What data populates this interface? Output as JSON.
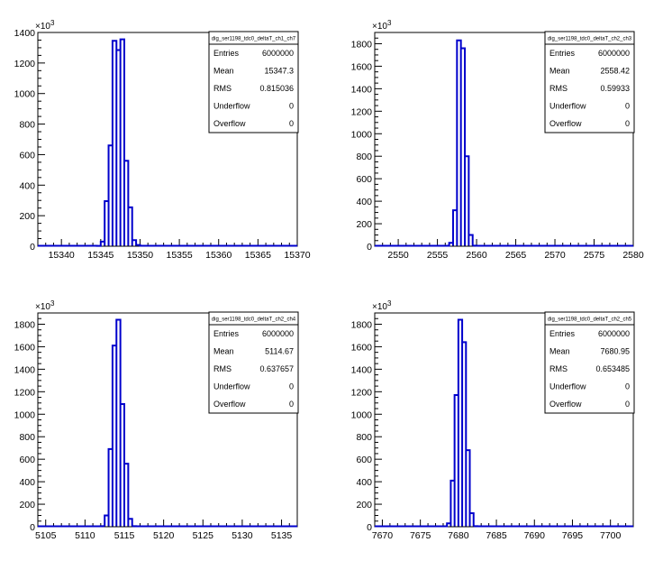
{
  "chart_data": [
    {
      "type": "bar",
      "title": "dig_ser1198_tdc0_deltaT_ch1_ch7",
      "y_exponent": "10",
      "y_exponent_power": "3",
      "xlim": [
        15337,
        15370
      ],
      "ylim": [
        0,
        1400
      ],
      "x_ticks": [
        15340,
        15345,
        15350,
        15355,
        15360,
        15365,
        15370
      ],
      "x_tick_labels": [
        "15340",
        "15345",
        "15350",
        "15355",
        "15360",
        "15365",
        "15370"
      ],
      "y_ticks": [
        0,
        200,
        400,
        600,
        800,
        1000,
        1200,
        1400
      ],
      "y_tick_labels": [
        "0",
        "200",
        "400",
        "600",
        "800",
        "1000",
        "1200",
        "1400"
      ],
      "bin_width": 0.5,
      "bins": [
        {
          "x": 15344.5,
          "y": 2
        },
        {
          "x": 15345.0,
          "y": 30
        },
        {
          "x": 15345.5,
          "y": 295
        },
        {
          "x": 15346.0,
          "y": 660
        },
        {
          "x": 15346.5,
          "y": 1345
        },
        {
          "x": 15347.0,
          "y": 1285
        },
        {
          "x": 15347.5,
          "y": 1355
        },
        {
          "x": 15348.0,
          "y": 560
        },
        {
          "x": 15348.5,
          "y": 255
        },
        {
          "x": 15349.0,
          "y": 40
        },
        {
          "x": 15349.5,
          "y": 8
        }
      ],
      "stats": {
        "rows": [
          {
            "label": "Entries",
            "value": "6000000"
          },
          {
            "label": "Mean",
            "value": "15347.3"
          },
          {
            "label": "RMS",
            "value": "0.815036"
          },
          {
            "label": "Underflow",
            "value": "0"
          },
          {
            "label": "Overflow",
            "value": "0"
          }
        ]
      },
      "line_color": "#0000cc"
    },
    {
      "type": "bar",
      "title": "dig_ser1198_tdc0_deltaT_ch2_ch3",
      "y_exponent": "10",
      "y_exponent_power": "3",
      "xlim": [
        2547,
        2580
      ],
      "ylim": [
        0,
        1900
      ],
      "x_ticks": [
        2550,
        2555,
        2560,
        2565,
        2570,
        2575,
        2580
      ],
      "x_tick_labels": [
        "2550",
        "2555",
        "2560",
        "2565",
        "2570",
        "2575",
        "2580"
      ],
      "y_ticks": [
        0,
        200,
        400,
        600,
        800,
        1000,
        1200,
        1400,
        1600,
        1800
      ],
      "y_tick_labels": [
        "0",
        "200",
        "400",
        "600",
        "800",
        "1000",
        "1200",
        "1400",
        "1600",
        "1800"
      ],
      "bin_width": 0.5,
      "bins": [
        {
          "x": 2556.5,
          "y": 30
        },
        {
          "x": 2557.0,
          "y": 320
        },
        {
          "x": 2557.5,
          "y": 1830
        },
        {
          "x": 2558.0,
          "y": 1760
        },
        {
          "x": 2558.5,
          "y": 800
        },
        {
          "x": 2559.0,
          "y": 100
        },
        {
          "x": 2559.5,
          "y": 5
        }
      ],
      "stats": {
        "rows": [
          {
            "label": "Entries",
            "value": "6000000"
          },
          {
            "label": "Mean",
            "value": "2558.42"
          },
          {
            "label": "RMS",
            "value": "0.59933"
          },
          {
            "label": "Underflow",
            "value": "0"
          },
          {
            "label": "Overflow",
            "value": "0"
          }
        ]
      },
      "line_color": "#0000cc"
    },
    {
      "type": "bar",
      "title": "dig_ser1198_tdc0_deltaT_ch2_ch4",
      "y_exponent": "10",
      "y_exponent_power": "3",
      "xlim": [
        5104,
        5137
      ],
      "ylim": [
        0,
        1900
      ],
      "x_ticks": [
        5105,
        5110,
        5115,
        5120,
        5125,
        5130,
        5135
      ],
      "x_tick_labels": [
        "5105",
        "5110",
        "5115",
        "5120",
        "5125",
        "5130",
        "5135"
      ],
      "y_ticks": [
        0,
        200,
        400,
        600,
        800,
        1000,
        1200,
        1400,
        1600,
        1800
      ],
      "y_tick_labels": [
        "0",
        "200",
        "400",
        "600",
        "800",
        "1000",
        "1200",
        "1400",
        "1600",
        "1800"
      ],
      "bin_width": 0.5,
      "bins": [
        {
          "x": 5112.0,
          "y": 5
        },
        {
          "x": 5112.5,
          "y": 100
        },
        {
          "x": 5113.0,
          "y": 690
        },
        {
          "x": 5113.5,
          "y": 1610
        },
        {
          "x": 5114.0,
          "y": 1840
        },
        {
          "x": 5114.5,
          "y": 1090
        },
        {
          "x": 5115.0,
          "y": 560
        },
        {
          "x": 5115.5,
          "y": 70
        },
        {
          "x": 5116.0,
          "y": 5
        }
      ],
      "stats": {
        "rows": [
          {
            "label": "Entries",
            "value": "6000000"
          },
          {
            "label": "Mean",
            "value": "5114.67"
          },
          {
            "label": "RMS",
            "value": "0.637657"
          },
          {
            "label": "Underflow",
            "value": "0"
          },
          {
            "label": "Overflow",
            "value": "0"
          }
        ]
      },
      "line_color": "#0000cc"
    },
    {
      "type": "bar",
      "title": "dig_ser1198_tdc0_deltaT_ch2_ch5",
      "y_exponent": "10",
      "y_exponent_power": "3",
      "xlim": [
        7669,
        7703
      ],
      "ylim": [
        0,
        1900
      ],
      "x_ticks": [
        7670,
        7675,
        7680,
        7685,
        7690,
        7695,
        7700
      ],
      "x_tick_labels": [
        "7670",
        "7675",
        "7680",
        "7685",
        "7690",
        "7695",
        "7700"
      ],
      "y_ticks": [
        0,
        200,
        400,
        600,
        800,
        1000,
        1200,
        1400,
        1600,
        1800
      ],
      "y_tick_labels": [
        "0",
        "200",
        "400",
        "600",
        "800",
        "1000",
        "1200",
        "1400",
        "1600",
        "1800"
      ],
      "bin_width": 0.5,
      "bins": [
        {
          "x": 7678.5,
          "y": 30
        },
        {
          "x": 7679.0,
          "y": 410
        },
        {
          "x": 7679.5,
          "y": 1170
        },
        {
          "x": 7680.0,
          "y": 1840
        },
        {
          "x": 7680.5,
          "y": 1640
        },
        {
          "x": 7681.0,
          "y": 680
        },
        {
          "x": 7681.5,
          "y": 120
        },
        {
          "x": 7682.0,
          "y": 5
        }
      ],
      "stats": {
        "rows": [
          {
            "label": "Entries",
            "value": "6000000"
          },
          {
            "label": "Mean",
            "value": "7680.95"
          },
          {
            "label": "RMS",
            "value": "0.653485"
          },
          {
            "label": "Underflow",
            "value": "0"
          },
          {
            "label": "Overflow",
            "value": "0"
          }
        ]
      },
      "line_color": "#0000cc"
    }
  ]
}
